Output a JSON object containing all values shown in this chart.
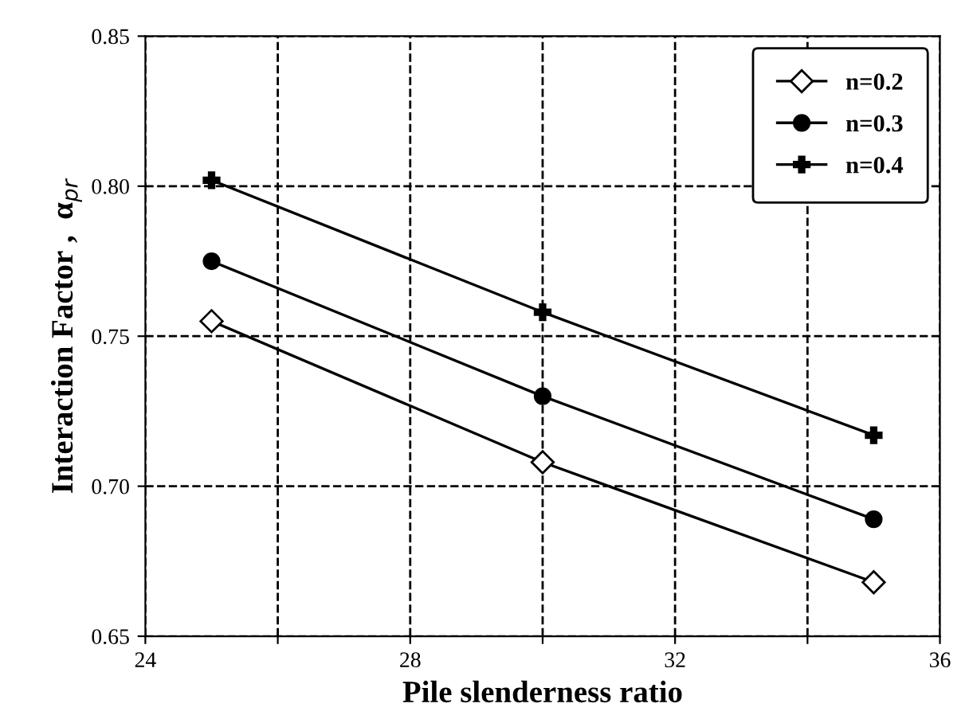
{
  "chart_data": {
    "type": "line",
    "xlabel": "Pile slenderness ratio",
    "ylabel": "Interaction Factor ,  α$_{pr}$",
    "x": [
      25,
      30,
      35
    ],
    "series": [
      {
        "name": "n=0.2",
        "color": "#000000",
        "marker": "diamond",
        "values": [
          0.755,
          0.708,
          0.668
        ]
      },
      {
        "name": "n=0.3",
        "color": "#000000",
        "marker": "circle",
        "values": [
          0.775,
          0.73,
          0.689
        ]
      },
      {
        "name": "n=0.4",
        "color": "#000000",
        "marker": "cross",
        "values": [
          0.802,
          0.758,
          0.717
        ]
      }
    ],
    "xlim": [
      24,
      36
    ],
    "xticks": [
      24,
      {
        "value": 26,
        "label": null
      },
      28,
      {
        "value": 30,
        "label": null
      },
      32,
      {
        "value": 34,
        "label": null
      },
      36
    ],
    "ylim": [
      0.65,
      0.85
    ],
    "yticks": [
      {
        "value": 0.65,
        "label": "0.65"
      },
      {
        "value": 0.7,
        "label": "0.70"
      },
      {
        "value": 0.75,
        "label": "0.75"
      },
      {
        "value": 0.8,
        "label": "0.80"
      },
      {
        "value": 0.85,
        "label": "0.85"
      }
    ],
    "grid": true,
    "legend": "top right",
    "line_style": "solid"
  }
}
